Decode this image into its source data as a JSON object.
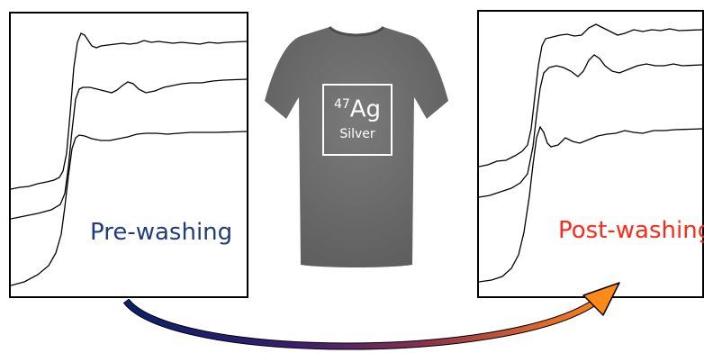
{
  "panels": {
    "pre": {
      "label": "Pre-washing",
      "label_color": "#1f3d7a"
    },
    "post": {
      "label": "Post-washing",
      "label_color": "#ff2a1a"
    }
  },
  "element_box": {
    "mass_number": "47",
    "symbol": "Ag",
    "name": "Silver"
  },
  "colors": {
    "shirt": "#6e6e6e",
    "arrow_start": "#0a1f6e",
    "arrow_end": "#ff8a1a"
  },
  "icons": {
    "shirt": "t-shirt-icon",
    "arrow": "curved-arrow-icon"
  }
}
